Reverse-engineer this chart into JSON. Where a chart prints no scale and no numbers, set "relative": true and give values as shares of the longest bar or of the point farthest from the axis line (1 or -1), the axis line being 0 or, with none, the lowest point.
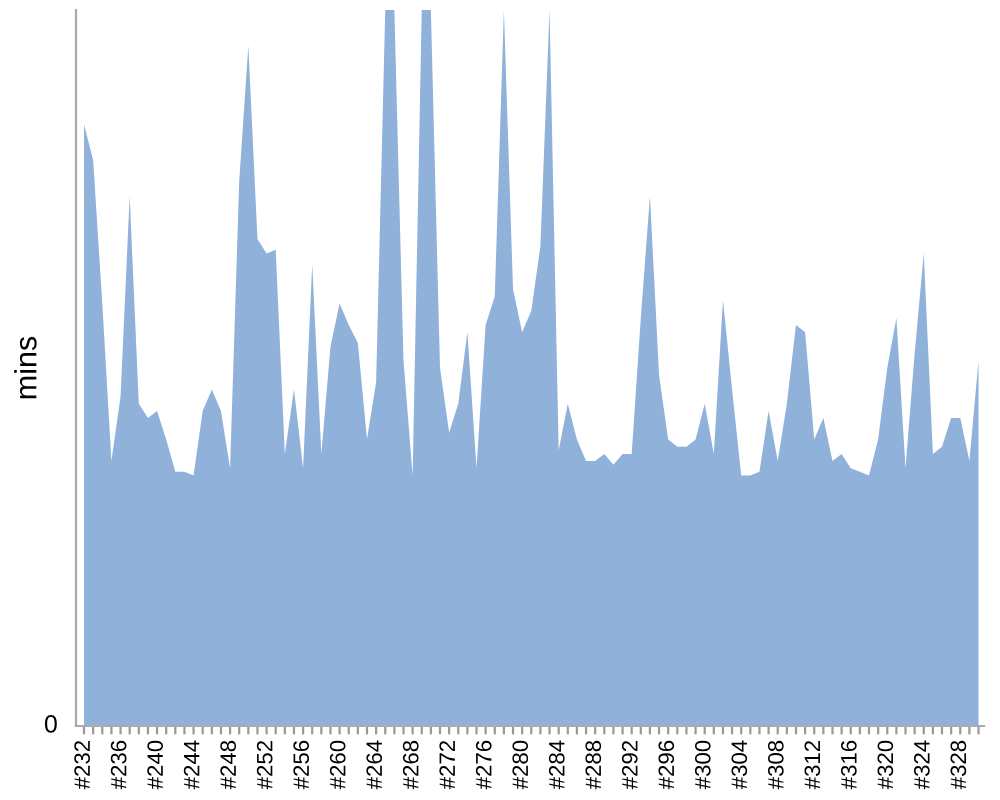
{
  "chart_data": {
    "type": "area",
    "relative": true,
    "ylabel": "mins",
    "color": "#8fb1da",
    "grid": false,
    "legend": false,
    "annotations": [
      "0"
    ],
    "categories": [
      "#232",
      null,
      null,
      null,
      "#236",
      null,
      null,
      null,
      "#240",
      null,
      null,
      null,
      "#244",
      null,
      null,
      null,
      "#248",
      null,
      null,
      null,
      "#252",
      null,
      null,
      null,
      "#256",
      null,
      null,
      null,
      "#260",
      null,
      null,
      null,
      "#264",
      null,
      null,
      null,
      "#268",
      null,
      null,
      null,
      "#272",
      null,
      null,
      null,
      "#276",
      null,
      null,
      null,
      "#280",
      null,
      null,
      null,
      "#284",
      null,
      null,
      null,
      "#288",
      null,
      null,
      null,
      "#292",
      null,
      null,
      null,
      "#296",
      null,
      null,
      null,
      "#300",
      null,
      null,
      null,
      "#304",
      null,
      null,
      null,
      "#308",
      null,
      null,
      null,
      "#312",
      null,
      null,
      null,
      "#316",
      null,
      null,
      null,
      "#320",
      null,
      null,
      null,
      "#324",
      null,
      null,
      null,
      "#328",
      null,
      null
    ],
    "values": [
      0.84,
      0.79,
      0.59,
      0.37,
      0.46,
      0.74,
      0.45,
      0.43,
      0.44,
      0.4,
      0.355,
      0.355,
      0.35,
      0.44,
      0.47,
      0.44,
      0.36,
      0.76,
      0.95,
      0.68,
      0.66,
      0.665,
      0.38,
      0.47,
      0.36,
      0.645,
      0.38,
      0.53,
      0.59,
      0.56,
      0.535,
      0.4,
      0.48,
      1,
      1,
      0.51,
      0.35,
      1,
      1,
      0.5,
      0.41,
      0.45,
      0.55,
      0.36,
      0.56,
      0.6,
      1,
      0.61,
      0.55,
      0.58,
      0.67,
      1,
      0.385,
      0.45,
      0.4,
      0.37,
      0.37,
      0.38,
      0.365,
      0.38,
      0.38,
      0.57,
      0.74,
      0.49,
      0.4,
      0.39,
      0.39,
      0.4,
      0.45,
      0.38,
      0.595,
      0.47,
      0.35,
      0.35,
      0.355,
      0.44,
      0.37,
      0.45,
      0.56,
      0.55,
      0.4,
      0.43,
      0.37,
      0.38,
      0.36,
      0.355,
      0.35,
      0.4,
      0.5,
      0.57,
      0.36,
      0.52,
      0.66,
      0.38,
      0.39,
      0.43,
      0.43,
      0.37,
      0.51
    ]
  }
}
